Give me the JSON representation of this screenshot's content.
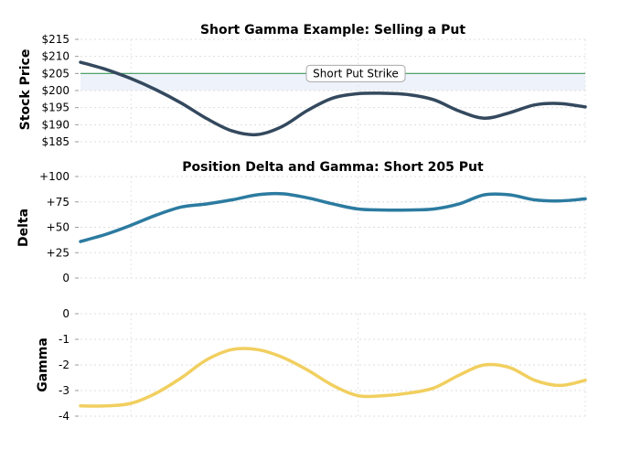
{
  "chart_data": [
    {
      "type": "line",
      "title": "Short Gamma Example: Selling a Put",
      "xlabel": "",
      "ylabel": "Stock Price",
      "ylim": [
        185,
        215
      ],
      "yticks": [
        185,
        190,
        195,
        200,
        205,
        210,
        215
      ],
      "ytick_labels": [
        "$185",
        "$190",
        "$195",
        "$200",
        "$205",
        "$210",
        "$215"
      ],
      "x": [
        0,
        5,
        10,
        15,
        20,
        25,
        30,
        35,
        40,
        45,
        50,
        55,
        60,
        65,
        70,
        75,
        80,
        85,
        90,
        95,
        100
      ],
      "series": [
        {
          "values": [
            208.3,
            206.2,
            203.5,
            200.2,
            196.3,
            191.8,
            188.2,
            187.1,
            189.5,
            194.2,
            197.8,
            199.1,
            199.2,
            198.8,
            197.3,
            194.0,
            191.9,
            193.5,
            195.8,
            196.2,
            195.2
          ],
          "color": "#34495e"
        }
      ],
      "hline": {
        "y": 205,
        "label": "Short Put Strike",
        "color": "#3d9a5a"
      },
      "shade": {
        "from": 200,
        "to": 205,
        "color": "#eef3fb"
      },
      "grid": true
    },
    {
      "type": "line",
      "title": "Position Delta and Gamma: Short 205 Put",
      "xlabel": "",
      "ylabel": "Delta",
      "ylim": [
        0,
        100
      ],
      "yticks": [
        0,
        25,
        50,
        75,
        100
      ],
      "ytick_labels": [
        "0",
        "+25",
        "+50",
        "+75",
        "+100"
      ],
      "x": [
        0,
        5,
        10,
        15,
        20,
        25,
        30,
        35,
        40,
        45,
        50,
        55,
        60,
        65,
        70,
        75,
        80,
        85,
        90,
        95,
        100
      ],
      "series": [
        {
          "values": [
            36.0,
            43.0,
            52.0,
            62.0,
            70.0,
            73.0,
            77.0,
            82.0,
            83.0,
            79.0,
            73.0,
            68.0,
            67.0,
            67.0,
            68.0,
            73.0,
            82.0,
            82.0,
            77.0,
            76.0,
            78.0
          ],
          "color": "#2c7ba0"
        }
      ],
      "grid": true
    },
    {
      "type": "line",
      "title": "",
      "xlabel": "",
      "ylabel": "Gamma",
      "ylim": [
        -4,
        0
      ],
      "yticks": [
        -4,
        -3,
        -2,
        -1,
        0
      ],
      "ytick_labels": [
        "-4",
        "-3",
        "-2",
        "-1",
        "0"
      ],
      "x": [
        0,
        5,
        10,
        15,
        20,
        25,
        30,
        35,
        40,
        45,
        50,
        55,
        60,
        65,
        70,
        75,
        80,
        85,
        90,
        95,
        100
      ],
      "series": [
        {
          "values": [
            -3.6,
            -3.6,
            -3.5,
            -3.1,
            -2.5,
            -1.8,
            -1.4,
            -1.4,
            -1.7,
            -2.2,
            -2.8,
            -3.2,
            -3.2,
            -3.1,
            -2.9,
            -2.4,
            -2.0,
            -2.1,
            -2.6,
            -2.8,
            -2.6
          ],
          "color": "#f1cf5f"
        }
      ],
      "grid": true
    }
  ]
}
